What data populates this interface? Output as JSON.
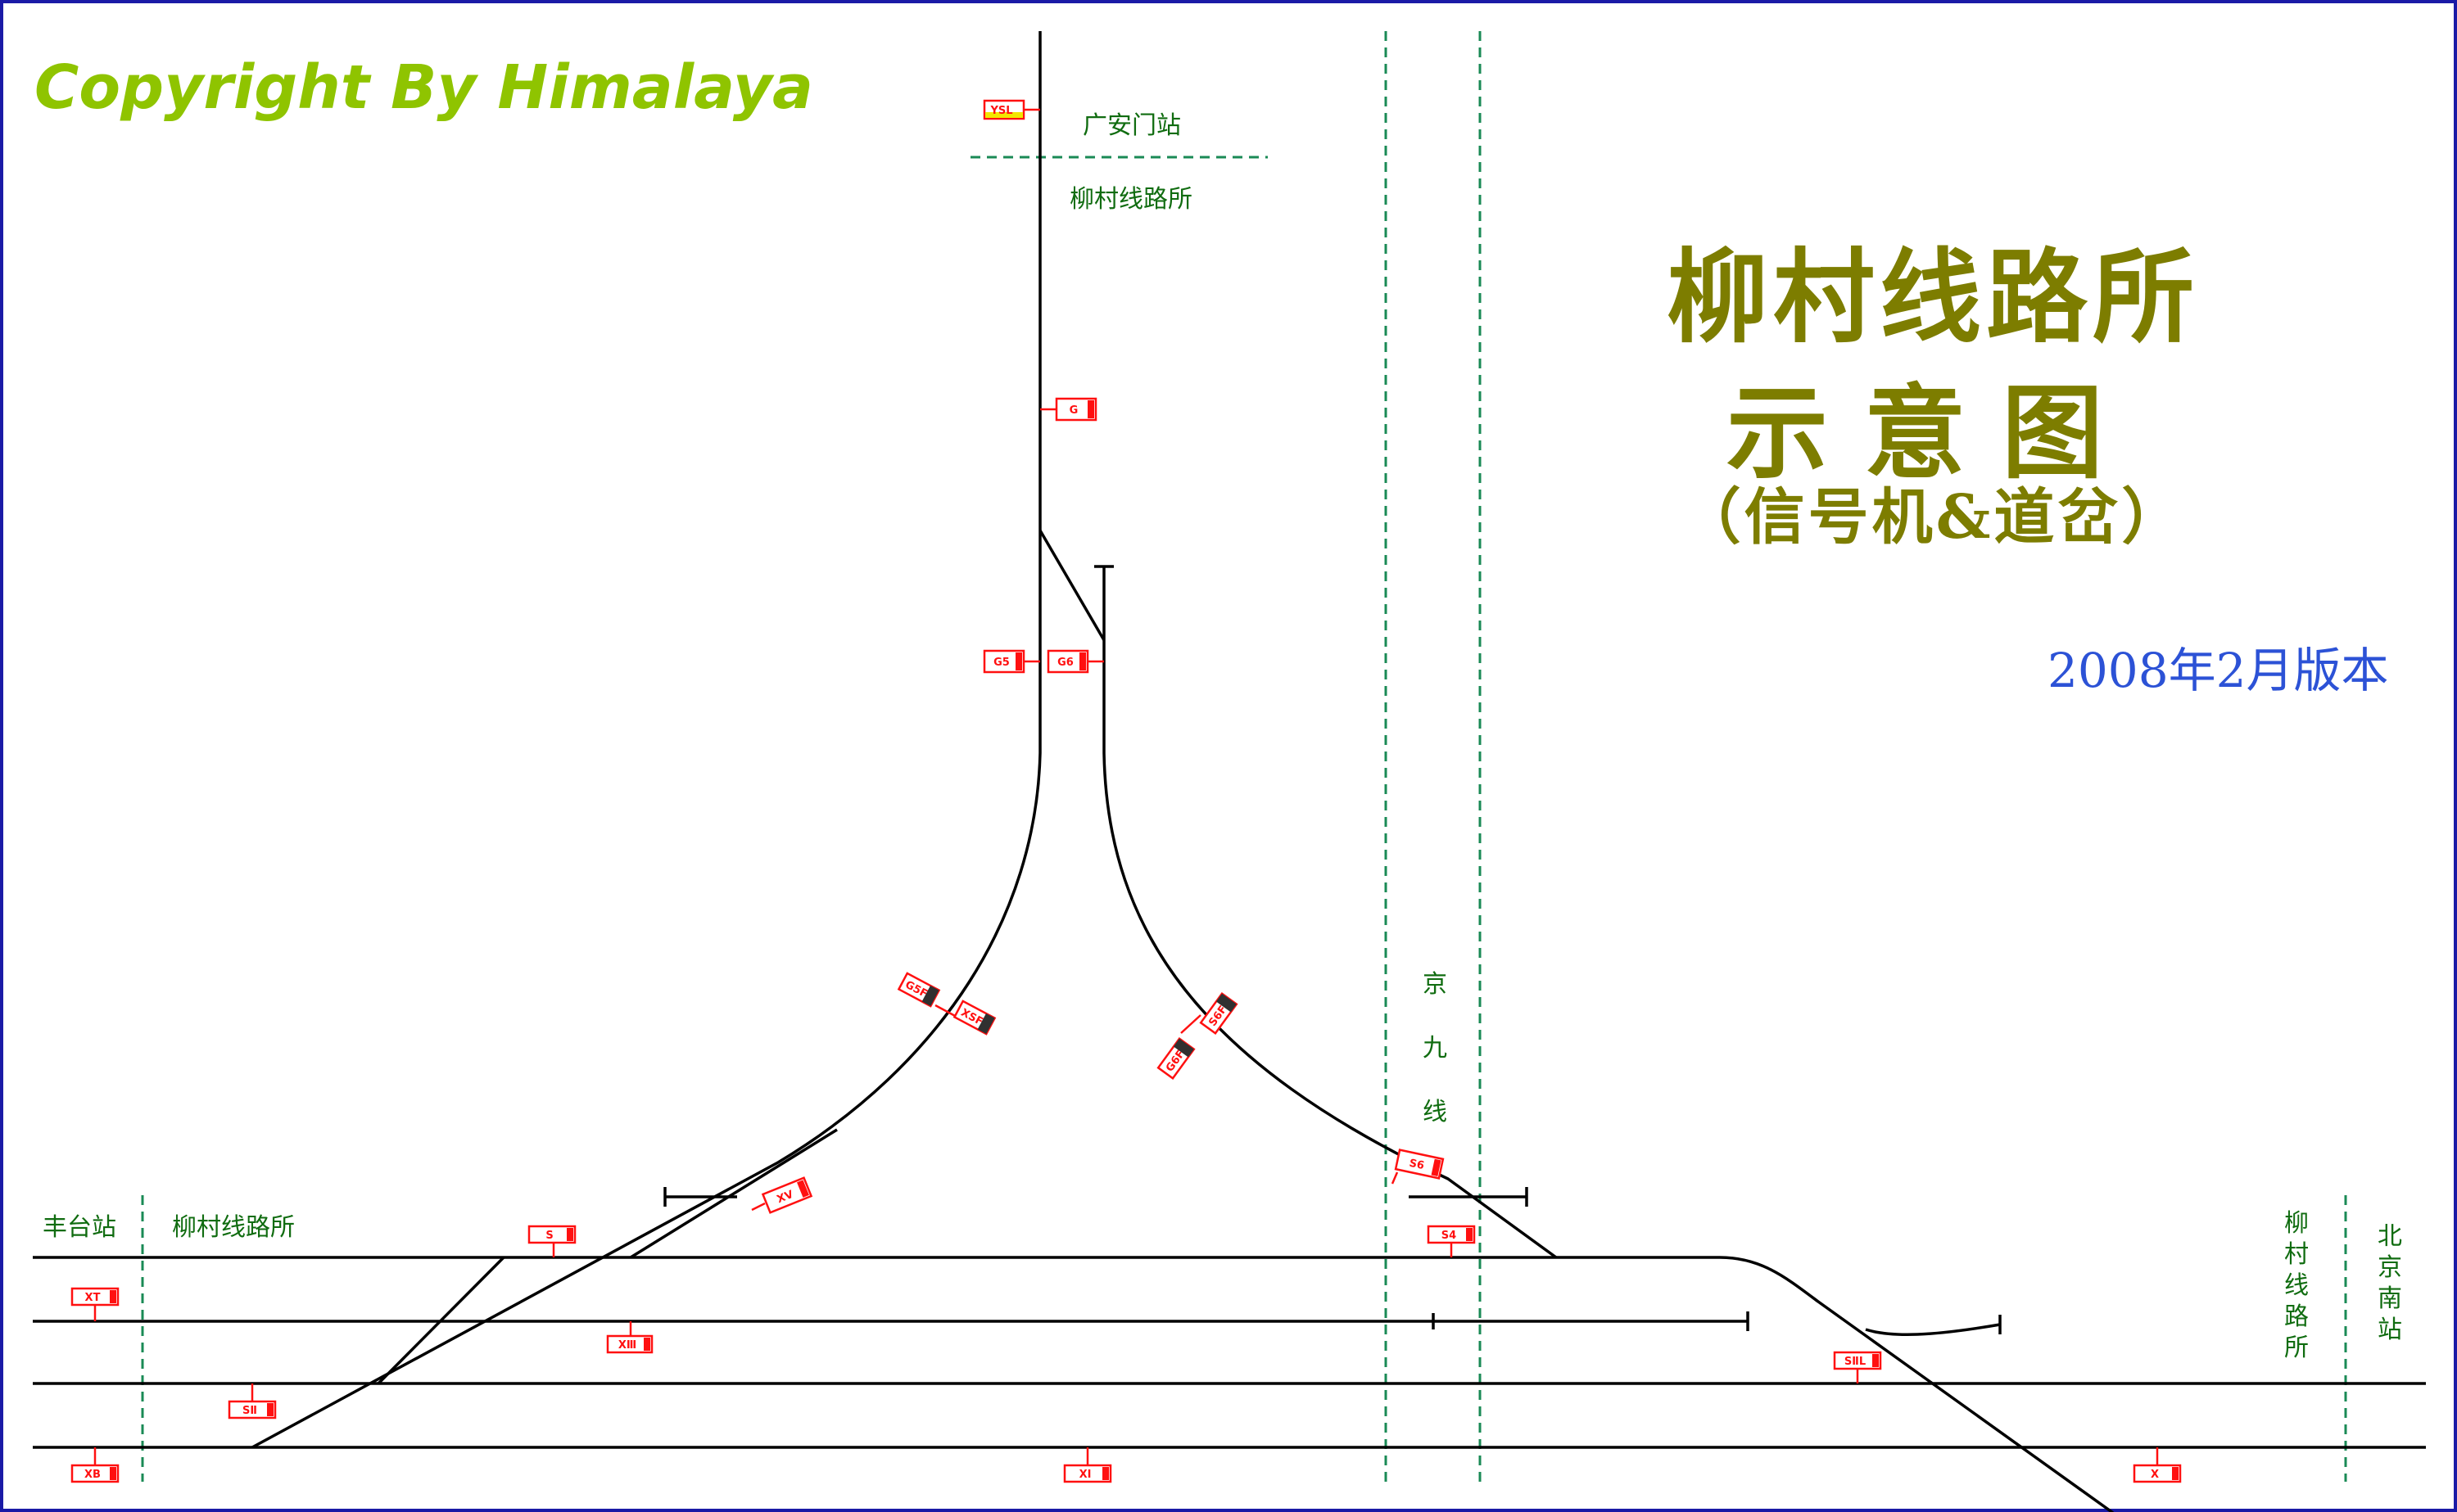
{
  "copyright": "Copyright By Himalaya",
  "title": {
    "line1": "柳村线路所",
    "line2": "示意图",
    "line3": "（信号机&道岔）"
  },
  "version": "2008年2月版本",
  "station_labels": {
    "guanganmen": "广安门站",
    "liucun_top": "柳村线路所",
    "fengtai": "丰台站",
    "liucun_left": "柳村线路所",
    "jingjiu": "京九线",
    "liucun_right": "柳村线路所",
    "beijing_south": "北京南站"
  },
  "signals": [
    {
      "name": "YSL",
      "style": "yellow"
    },
    {
      "name": "G",
      "style": "red"
    },
    {
      "name": "G5",
      "style": "red"
    },
    {
      "name": "G6",
      "style": "red"
    },
    {
      "name": "G5F",
      "style": "dark"
    },
    {
      "name": "XSF",
      "style": "dark"
    },
    {
      "name": "G6F",
      "style": "dark"
    },
    {
      "name": "S6F",
      "style": "dark"
    },
    {
      "name": "XⅤ",
      "style": "red"
    },
    {
      "name": "S6",
      "style": "red"
    },
    {
      "name": "S",
      "style": "red"
    },
    {
      "name": "S4",
      "style": "red"
    },
    {
      "name": "XT",
      "style": "red"
    },
    {
      "name": "XⅢ",
      "style": "red"
    },
    {
      "name": "SⅡ",
      "style": "red"
    },
    {
      "name": "SⅡL",
      "style": "red"
    },
    {
      "name": "XB",
      "style": "red"
    },
    {
      "name": "XⅠ",
      "style": "red"
    },
    {
      "name": "X",
      "style": "red"
    }
  ],
  "colors": {
    "track": "#000000",
    "signal": "#ff1010",
    "boundary": "#1a8a55",
    "title": "#7d7d00",
    "copyright": "#8fc400",
    "version": "#2c52d6",
    "frame": "#1a1aa6"
  }
}
